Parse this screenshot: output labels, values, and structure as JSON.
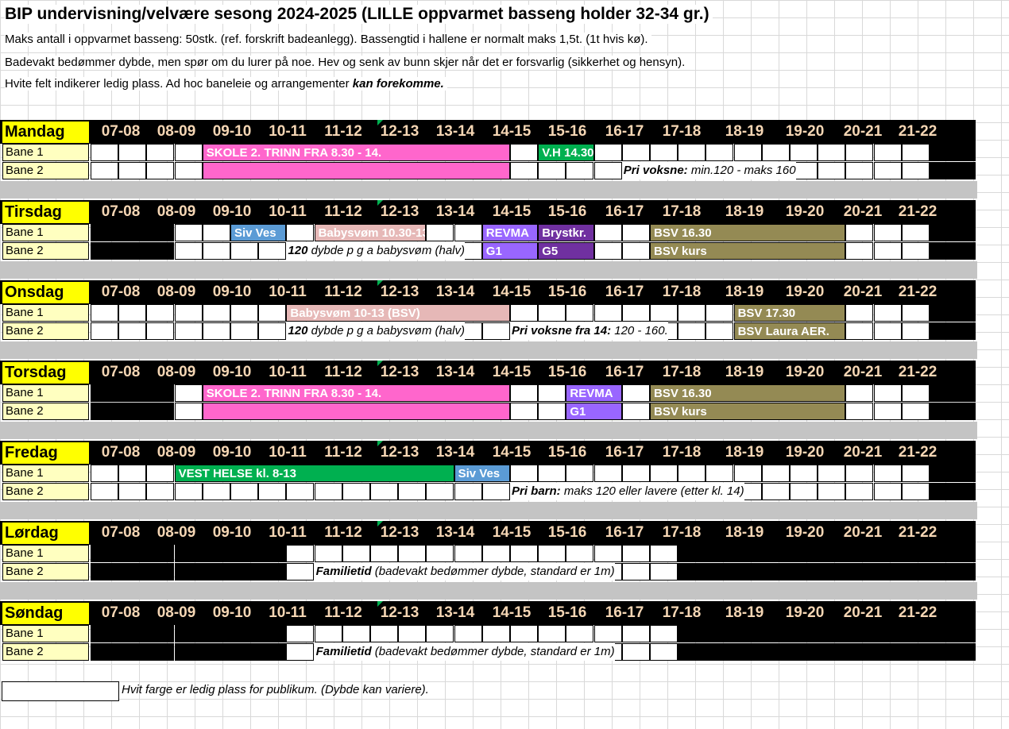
{
  "title": "BIP undervisning/velvære sesong 2024-2025 (LILLE oppvarmet basseng holder 32-34 gr.)",
  "info": [
    "Maks antall i oppvarmet basseng: 50stk. (ref. forskrift badeanlegg). Bassengtid i hallene er normalt maks 1,5t. (1t hvis kø).",
    "Badevakt bedømmer dybde, men spør om du lurer på noe. Hev og senk av bunn skjer når det er forsvarlig (sikkerhet og hensyn)."
  ],
  "info3_prefix": "Hvite felt indikerer ledig plass. Ad hoc baneleie og arrangementer ",
  "info3_bold": "kan forekomme.",
  "hours": [
    "07-08",
    "08-09",
    "09-10",
    "10-11",
    "11-12",
    "12-13",
    "13-14",
    "14-15",
    "15-16",
    "16-17",
    "17-18",
    "18-19",
    "19-20",
    "20-21",
    "21-22"
  ],
  "lane_labels": [
    "Bane 1",
    "Bane 2"
  ],
  "days": [
    {
      "name": "Mandag",
      "lane1_blocks": [
        {
          "text": "SKOLE 2. TRINN FRA 8.30 - 14.",
          "color": "#ff66cc"
        },
        {
          "text": "V.H 14.30",
          "color": "#00b050"
        }
      ],
      "lane2_blocks": [
        {
          "text": "",
          "color": "#ff66cc"
        }
      ],
      "lane2_note_bold": "Pri voksne:",
      "lane2_note": "  min.120 - maks 160"
    },
    {
      "name": "Tirsdag",
      "lane1_blocks": [
        {
          "text": "Siv Ves",
          "color": "#5b9bd5"
        },
        {
          "text": "Babysvøm 10.30-13",
          "color": "#e6b8b7"
        },
        {
          "text": "REVMA",
          "color": "#9966ff"
        },
        {
          "text": "Brystkr.",
          "color": "#7030a0"
        },
        {
          "text": "BSV 16.30",
          "color": "#948a54"
        }
      ],
      "lane2_blocks": [
        {
          "text": "G1",
          "color": "#9966ff"
        },
        {
          "text": "G5",
          "color": "#7030a0"
        },
        {
          "text": "BSV kurs",
          "color": "#948a54"
        }
      ],
      "lane2_note_bold": "120",
      "lane2_note": "  dybde p g a babysvøm (halv)"
    },
    {
      "name": "Onsdag",
      "lane1_blocks": [
        {
          "text": "Babysvøm 10-13 (BSV)",
          "color": "#e6b8b7"
        },
        {
          "text": "BSV 17.30",
          "color": "#948a54"
        }
      ],
      "lane2_blocks": [
        {
          "text": "BSV Laura AER.",
          "color": "#948a54"
        }
      ],
      "lane2_note_bold": "120",
      "lane2_note": "  dybde p g a babysvøm (halv)",
      "lane2_note2_bold": "Pri voksne fra 14:",
      "lane2_note2": "  120 - 160."
    },
    {
      "name": "Torsdag",
      "lane1_blocks": [
        {
          "text": "SKOLE 2. TRINN FRA 8.30 - 14.",
          "color": "#ff66cc"
        },
        {
          "text": "REVMA",
          "color": "#9966ff"
        },
        {
          "text": "BSV 16.30",
          "color": "#948a54"
        }
      ],
      "lane2_blocks": [
        {
          "text": "",
          "color": "#ff66cc"
        },
        {
          "text": "G1",
          "color": "#9966ff"
        },
        {
          "text": "BSV kurs",
          "color": "#948a54"
        }
      ]
    },
    {
      "name": "Fredag",
      "lane1_blocks": [
        {
          "text": "VEST HELSE kl. 8-13",
          "color": "#00b050"
        },
        {
          "text": "Siv Ves",
          "color": "#5b9bd5"
        }
      ],
      "lane2_note_bold": "Pri barn:",
      "lane2_note": "  maks 120 eller lavere (etter kl. 14)"
    },
    {
      "name": "Lørdag",
      "lane2_note_bold": "Familietid",
      "lane2_note": "  (badevakt bedømmer dybde, standard er 1m)"
    },
    {
      "name": "Søndag",
      "lane2_note_bold": "Familietid",
      "lane2_note": "  (badevakt bedømmer dybde, standard er 1m)"
    }
  ],
  "legend": "Hvit farge er ledig plass for publikum. (Dybde kan variere)."
}
